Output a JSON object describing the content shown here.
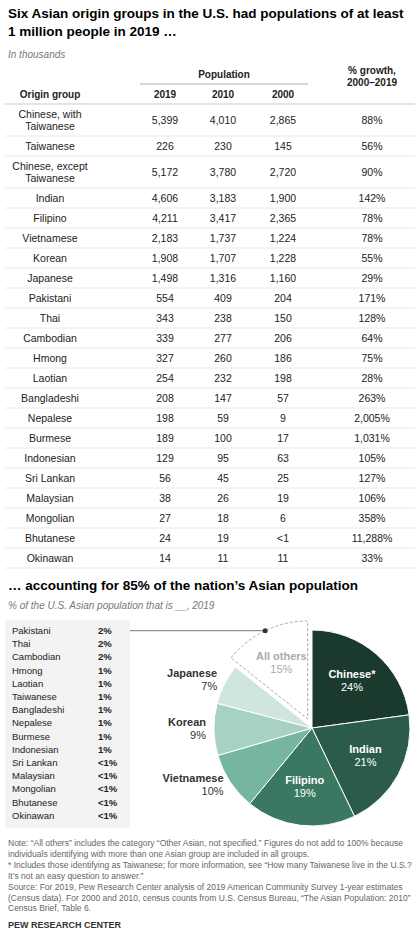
{
  "header": {
    "title": "Six Asian origin groups in the U.S. had populations of at least 1 million people in 2019 …",
    "subtitle": "In thousands"
  },
  "table": {
    "group_header": "Population",
    "columns": [
      "Origin group",
      "2019",
      "2010",
      "2000",
      "% growth, 2000–2019"
    ],
    "rows": [
      [
        "Chinese, with Taiwanese",
        "5,399",
        "4,010",
        "2,865",
        "88%"
      ],
      [
        "Taiwanese",
        "226",
        "230",
        "145",
        "56%"
      ],
      [
        "Chinese, except Taiwanese",
        "5,172",
        "3,780",
        "2,720",
        "90%"
      ],
      [
        "Indian",
        "4,606",
        "3,183",
        "1,900",
        "142%"
      ],
      [
        "Filipino",
        "4,211",
        "3,417",
        "2,365",
        "78%"
      ],
      [
        "Vietnamese",
        "2,183",
        "1,737",
        "1,224",
        "78%"
      ],
      [
        "Korean",
        "1,908",
        "1,707",
        "1,228",
        "55%"
      ],
      [
        "Japanese",
        "1,498",
        "1,316",
        "1,160",
        "29%"
      ],
      [
        "Pakistani",
        "554",
        "409",
        "204",
        "171%"
      ],
      [
        "Thai",
        "343",
        "238",
        "150",
        "128%"
      ],
      [
        "Cambodian",
        "339",
        "277",
        "206",
        "64%"
      ],
      [
        "Hmong",
        "327",
        "260",
        "186",
        "75%"
      ],
      [
        "Laotian",
        "254",
        "232",
        "198",
        "28%"
      ],
      [
        "Bangladeshi",
        "208",
        "147",
        "57",
        "263%"
      ],
      [
        "Nepalese",
        "198",
        "59",
        "9",
        "2,005%"
      ],
      [
        "Burmese",
        "189",
        "100",
        "17",
        "1,031%"
      ],
      [
        "Indonesian",
        "129",
        "95",
        "63",
        "105%"
      ],
      [
        "Sri Lankan",
        "56",
        "45",
        "25",
        "127%"
      ],
      [
        "Malaysian",
        "38",
        "26",
        "19",
        "106%"
      ],
      [
        "Mongolian",
        "27",
        "18",
        "6",
        "358%"
      ],
      [
        "Bhutanese",
        "24",
        "19",
        "<1",
        "11,288%"
      ],
      [
        "Okinawan",
        "14",
        "11",
        "11",
        "33%"
      ]
    ]
  },
  "chart_data": {
    "type": "pie",
    "title": "… accounting for 85% of the nation’s Asian population",
    "subtitle": "% of the U.S. Asian population that is __, 2019",
    "categories": [
      "Chinese*",
      "Indian",
      "Filipino",
      "Vietnamese",
      "Korean",
      "Japanese",
      "All others"
    ],
    "values": [
      24,
      21,
      19,
      10,
      9,
      7,
      15
    ],
    "value_labels": [
      "24%",
      "21%",
      "19%",
      "10%",
      "9%",
      "7%",
      "15%"
    ],
    "colors": [
      "#1a3a2e",
      "#2b5b4a",
      "#3b7862",
      "#76b5a0",
      "#a6d1c3",
      "#cfe6dd",
      "#ffffff"
    ],
    "data_labels": true
  },
  "others_breakdown": {
    "rows": [
      [
        "Pakistani",
        "2%"
      ],
      [
        "Thai",
        "2%"
      ],
      [
        "Cambodian",
        "2%"
      ],
      [
        "Hmong",
        "1%"
      ],
      [
        "Laotian",
        "1%"
      ],
      [
        "Taiwanese",
        "1%"
      ],
      [
        "Bangladeshi",
        "1%"
      ],
      [
        "Nepalese",
        "1%"
      ],
      [
        "Burmese",
        "1%"
      ],
      [
        "Indonesian",
        "1%"
      ],
      [
        "Sri Lankan",
        "<1%"
      ],
      [
        "Malaysian",
        "<1%"
      ],
      [
        "Mongolian",
        "<1%"
      ],
      [
        "Bhutanese",
        "<1%"
      ],
      [
        "Okinawan",
        "<1%"
      ]
    ]
  },
  "footer": {
    "notes": [
      "Note: “All others” includes the category “Other Asian, not specified.” Figures do not add to 100% because individuals identifying with more than one Asian group are included in all groups.",
      "* Includes those identifying as Taiwanese; for more information, see “How many Taiwanese live in the U.S.? It’s not an easy question to answer.”",
      "Source: For 2019, Pew Research Center analysis of 2019 American Community Survey 1-year estimates (Census data). For 2000 and 2010, census counts from U.S. Census Bureau, “The Asian Population: 2010” Census Brief, Table 6."
    ],
    "credit": "PEW RESEARCH CENTER"
  }
}
